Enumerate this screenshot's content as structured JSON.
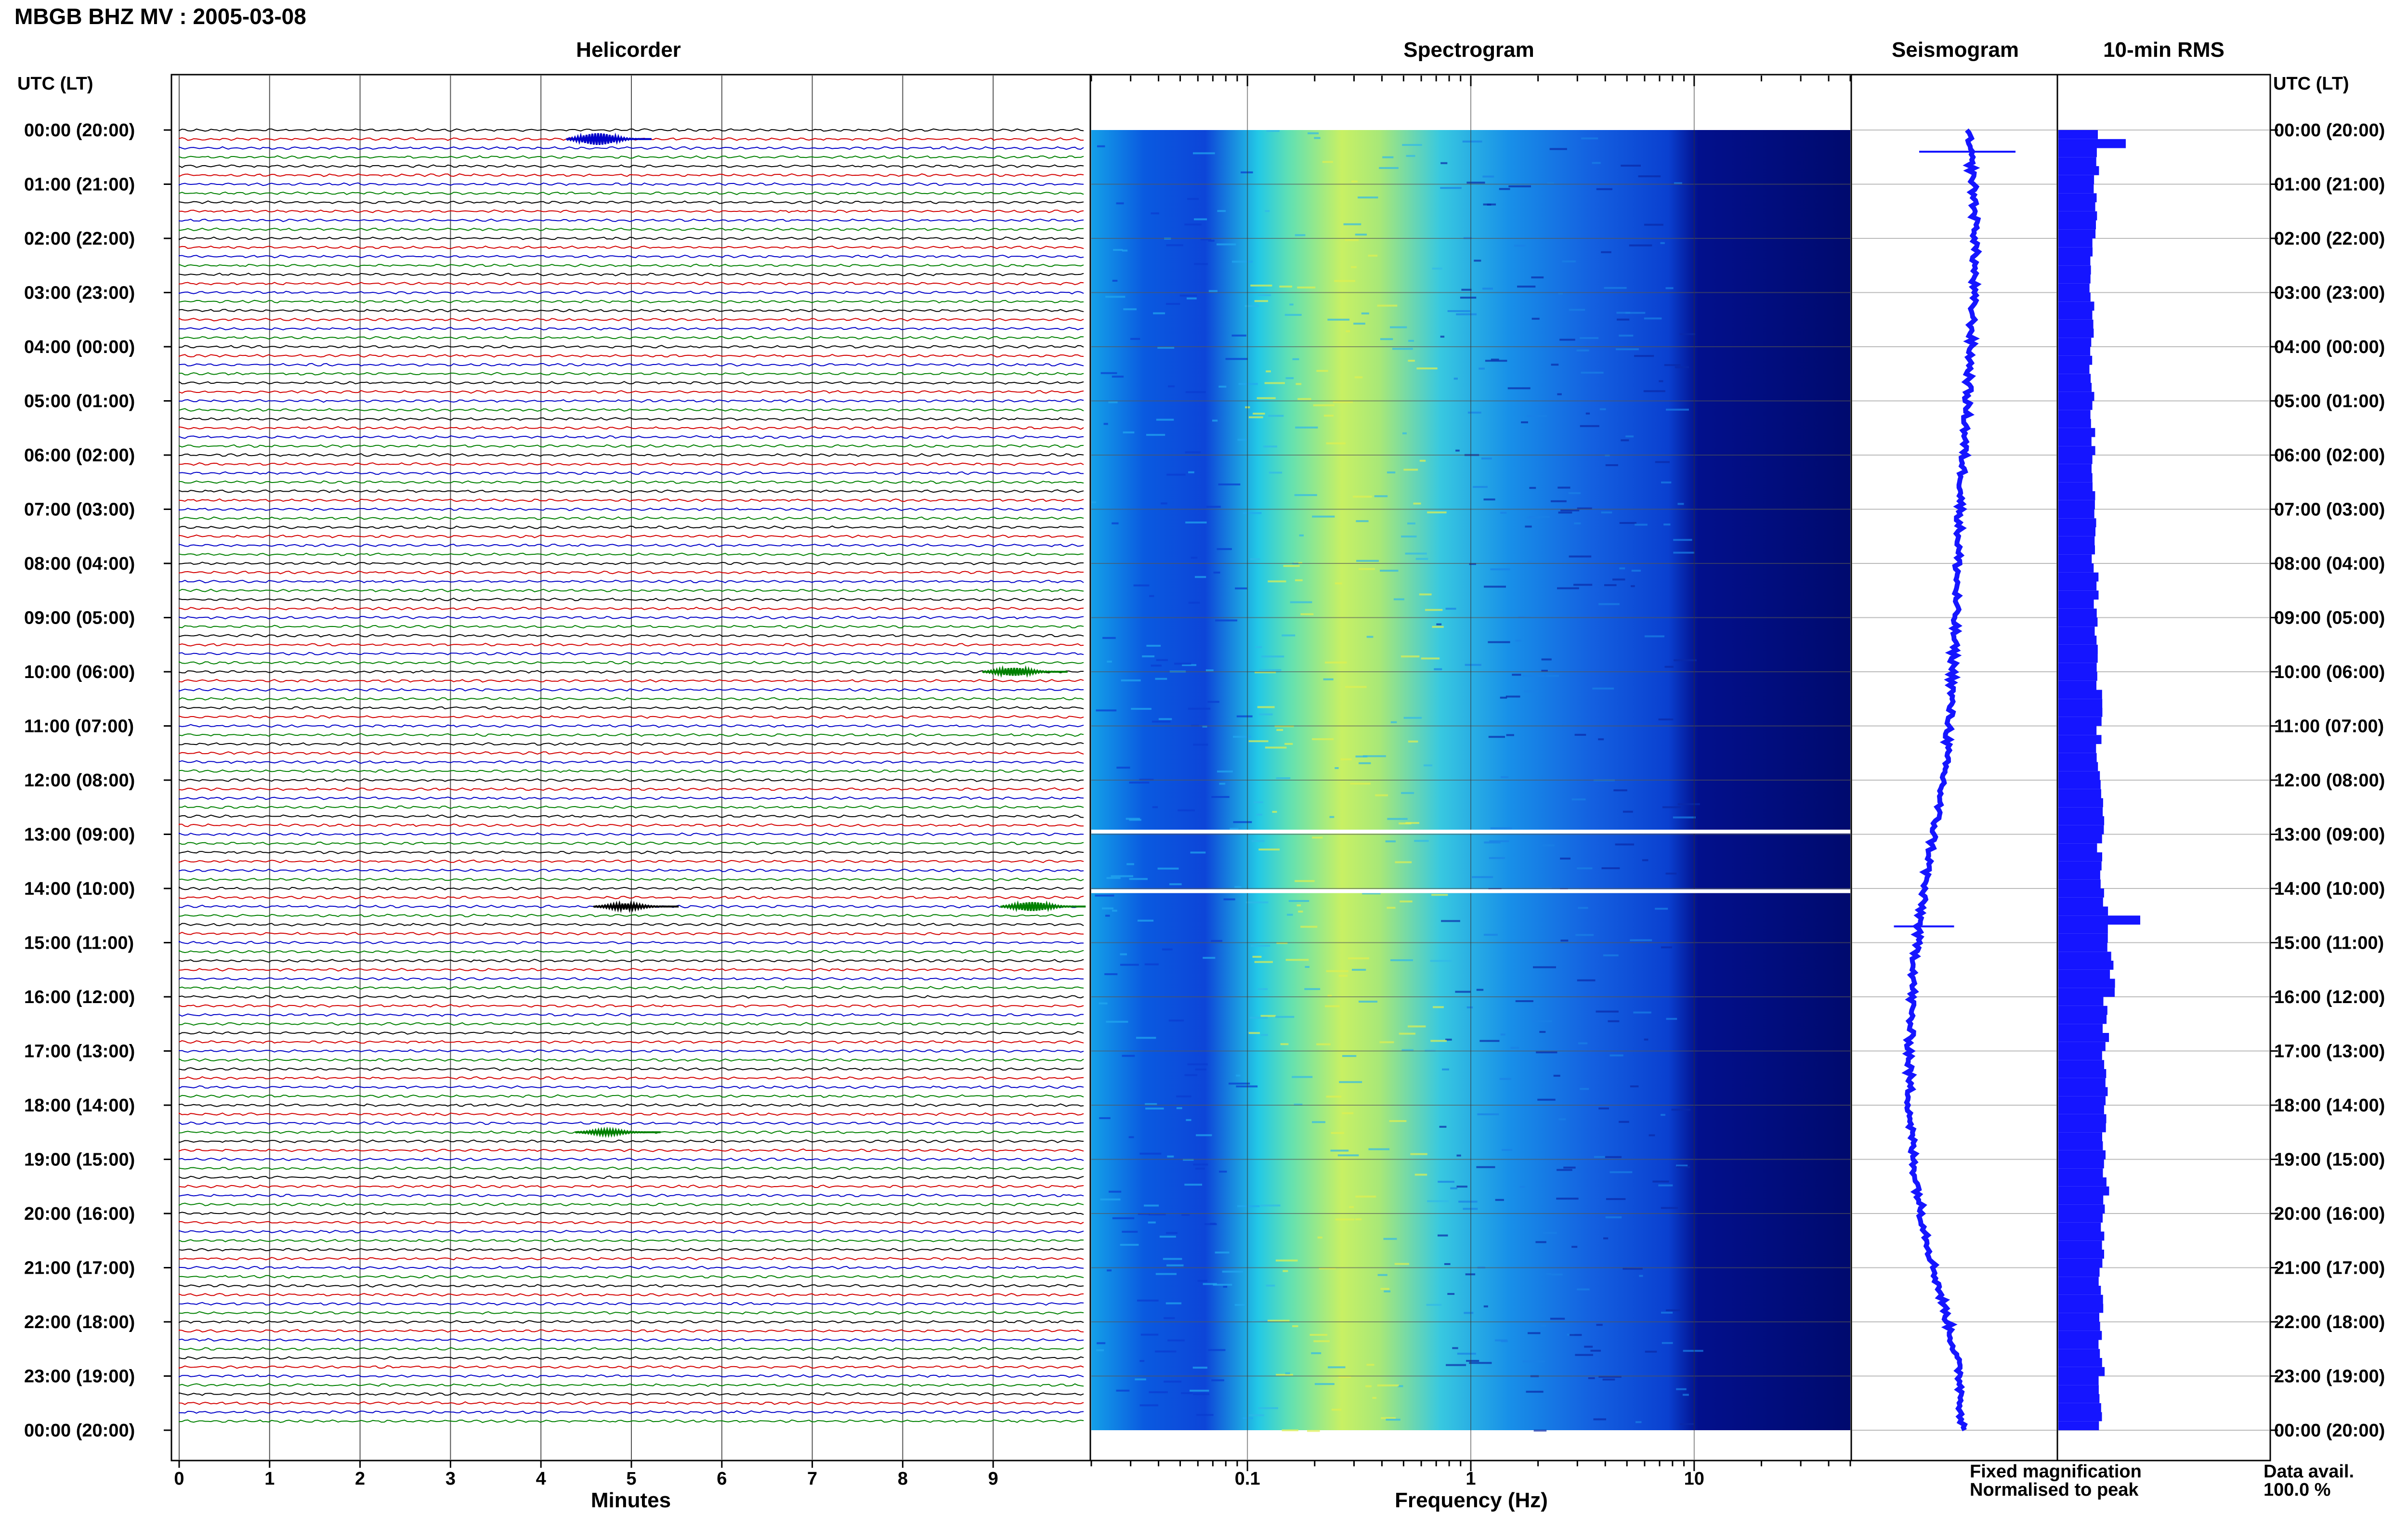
{
  "header": {
    "station_title": "MBGB BHZ MV : 2005-03-08"
  },
  "panels": {
    "helicorder_title": "Helicorder",
    "spectrogram_title": "Spectrogram",
    "seismogram_title": "Seismogram",
    "rms_title": "10-min RMS"
  },
  "axes": {
    "left_header": "UTC (LT)",
    "right_header": "UTC (LT)",
    "time_labels": [
      "00:00 (20:00)",
      "01:00 (21:00)",
      "02:00 (22:00)",
      "03:00 (23:00)",
      "04:00 (00:00)",
      "05:00 (01:00)",
      "06:00 (02:00)",
      "07:00 (03:00)",
      "08:00 (04:00)",
      "09:00 (05:00)",
      "10:00 (06:00)",
      "11:00 (07:00)",
      "12:00 (08:00)",
      "13:00 (09:00)",
      "14:00 (10:00)",
      "15:00 (11:00)",
      "16:00 (12:00)",
      "17:00 (13:00)",
      "18:00 (14:00)",
      "19:00 (15:00)",
      "20:00 (16:00)",
      "21:00 (17:00)",
      "22:00 (18:00)",
      "23:00 (19:00)",
      "00:00 (20:00)"
    ]
  },
  "footer": {
    "fixed_magnification": "Fixed magnification",
    "normalised_to_peak": "Normalised to peak",
    "data_avail_label": "Data avail.",
    "data_avail_value": "100.0 %",
    "fixed_color": "#1515ff",
    "normalised_color": "#ff1515"
  },
  "chart_data": [
    {
      "type": "line",
      "name": "helicorder",
      "xlabel": "Minutes",
      "xlim": [
        0,
        10
      ],
      "x_ticks": [
        0,
        1,
        2,
        3,
        4,
        5,
        6,
        7,
        8,
        9
      ],
      "x_tick_labels": [
        "0",
        "1",
        "2",
        "3",
        "4",
        "5",
        "6",
        "7",
        "8",
        "9"
      ],
      "rows_per_hour": 6,
      "trace_colors": [
        "#000000",
        "#d40000",
        "#0000c8",
        "#008000"
      ],
      "events": [
        {
          "row": 1,
          "minute": 4.6,
          "amp": 12,
          "color": "#0000c8"
        },
        {
          "row": 60,
          "minute": 9.2,
          "amp": 8,
          "color": "#008000"
        },
        {
          "row": 86,
          "minute": 4.9,
          "amp": 6,
          "color": "#000000"
        },
        {
          "row": 86,
          "minute": 9.4,
          "amp": 9,
          "color": "#008000"
        },
        {
          "row": 111,
          "minute": 4.7,
          "amp": 5,
          "color": "#008000"
        }
      ]
    },
    {
      "type": "heatmap",
      "name": "spectrogram",
      "xlabel": "Frequency (Hz)",
      "x_scale": "log",
      "xlim": [
        0.02,
        50
      ],
      "x_ticks": [
        0.1,
        1,
        10
      ],
      "x_tick_labels": [
        "0.1",
        "1",
        "10"
      ],
      "peak_frequency_hz": 0.3,
      "data_gaps_utc_hours": [
        12.95,
        14.05
      ]
    },
    {
      "type": "line",
      "name": "seismogram",
      "description_values": "trace offset over 24 h",
      "offsets": [
        0.0,
        0.05,
        0.07,
        0.05,
        0.03,
        0.0,
        -0.03,
        -0.06,
        -0.08,
        -0.1,
        -0.12,
        -0.15,
        -0.2,
        -0.28,
        -0.36,
        -0.42,
        -0.46,
        -0.48,
        -0.48,
        -0.45,
        -0.38,
        -0.28,
        -0.16,
        -0.06,
        -0.04
      ],
      "spikes": [
        {
          "hour": 0.4,
          "amp": 0.4
        },
        {
          "hour": 14.7,
          "amp": 0.25
        }
      ]
    },
    {
      "type": "bar",
      "name": "rms",
      "orientation": "horizontal",
      "values_per_hour": [
        0.8,
        0.75,
        0.7,
        0.7,
        0.7,
        0.72,
        0.72,
        0.75,
        0.78,
        0.8,
        0.85,
        0.85,
        0.9,
        0.85,
        1.0,
        1.1,
        1.0,
        0.95,
        0.95,
        1.0,
        0.95,
        0.9,
        0.9,
        0.85
      ],
      "peaks": [
        {
          "hour": 0.3,
          "value": 1.4
        },
        {
          "hour": 14.6,
          "value": 1.7
        }
      ]
    }
  ]
}
